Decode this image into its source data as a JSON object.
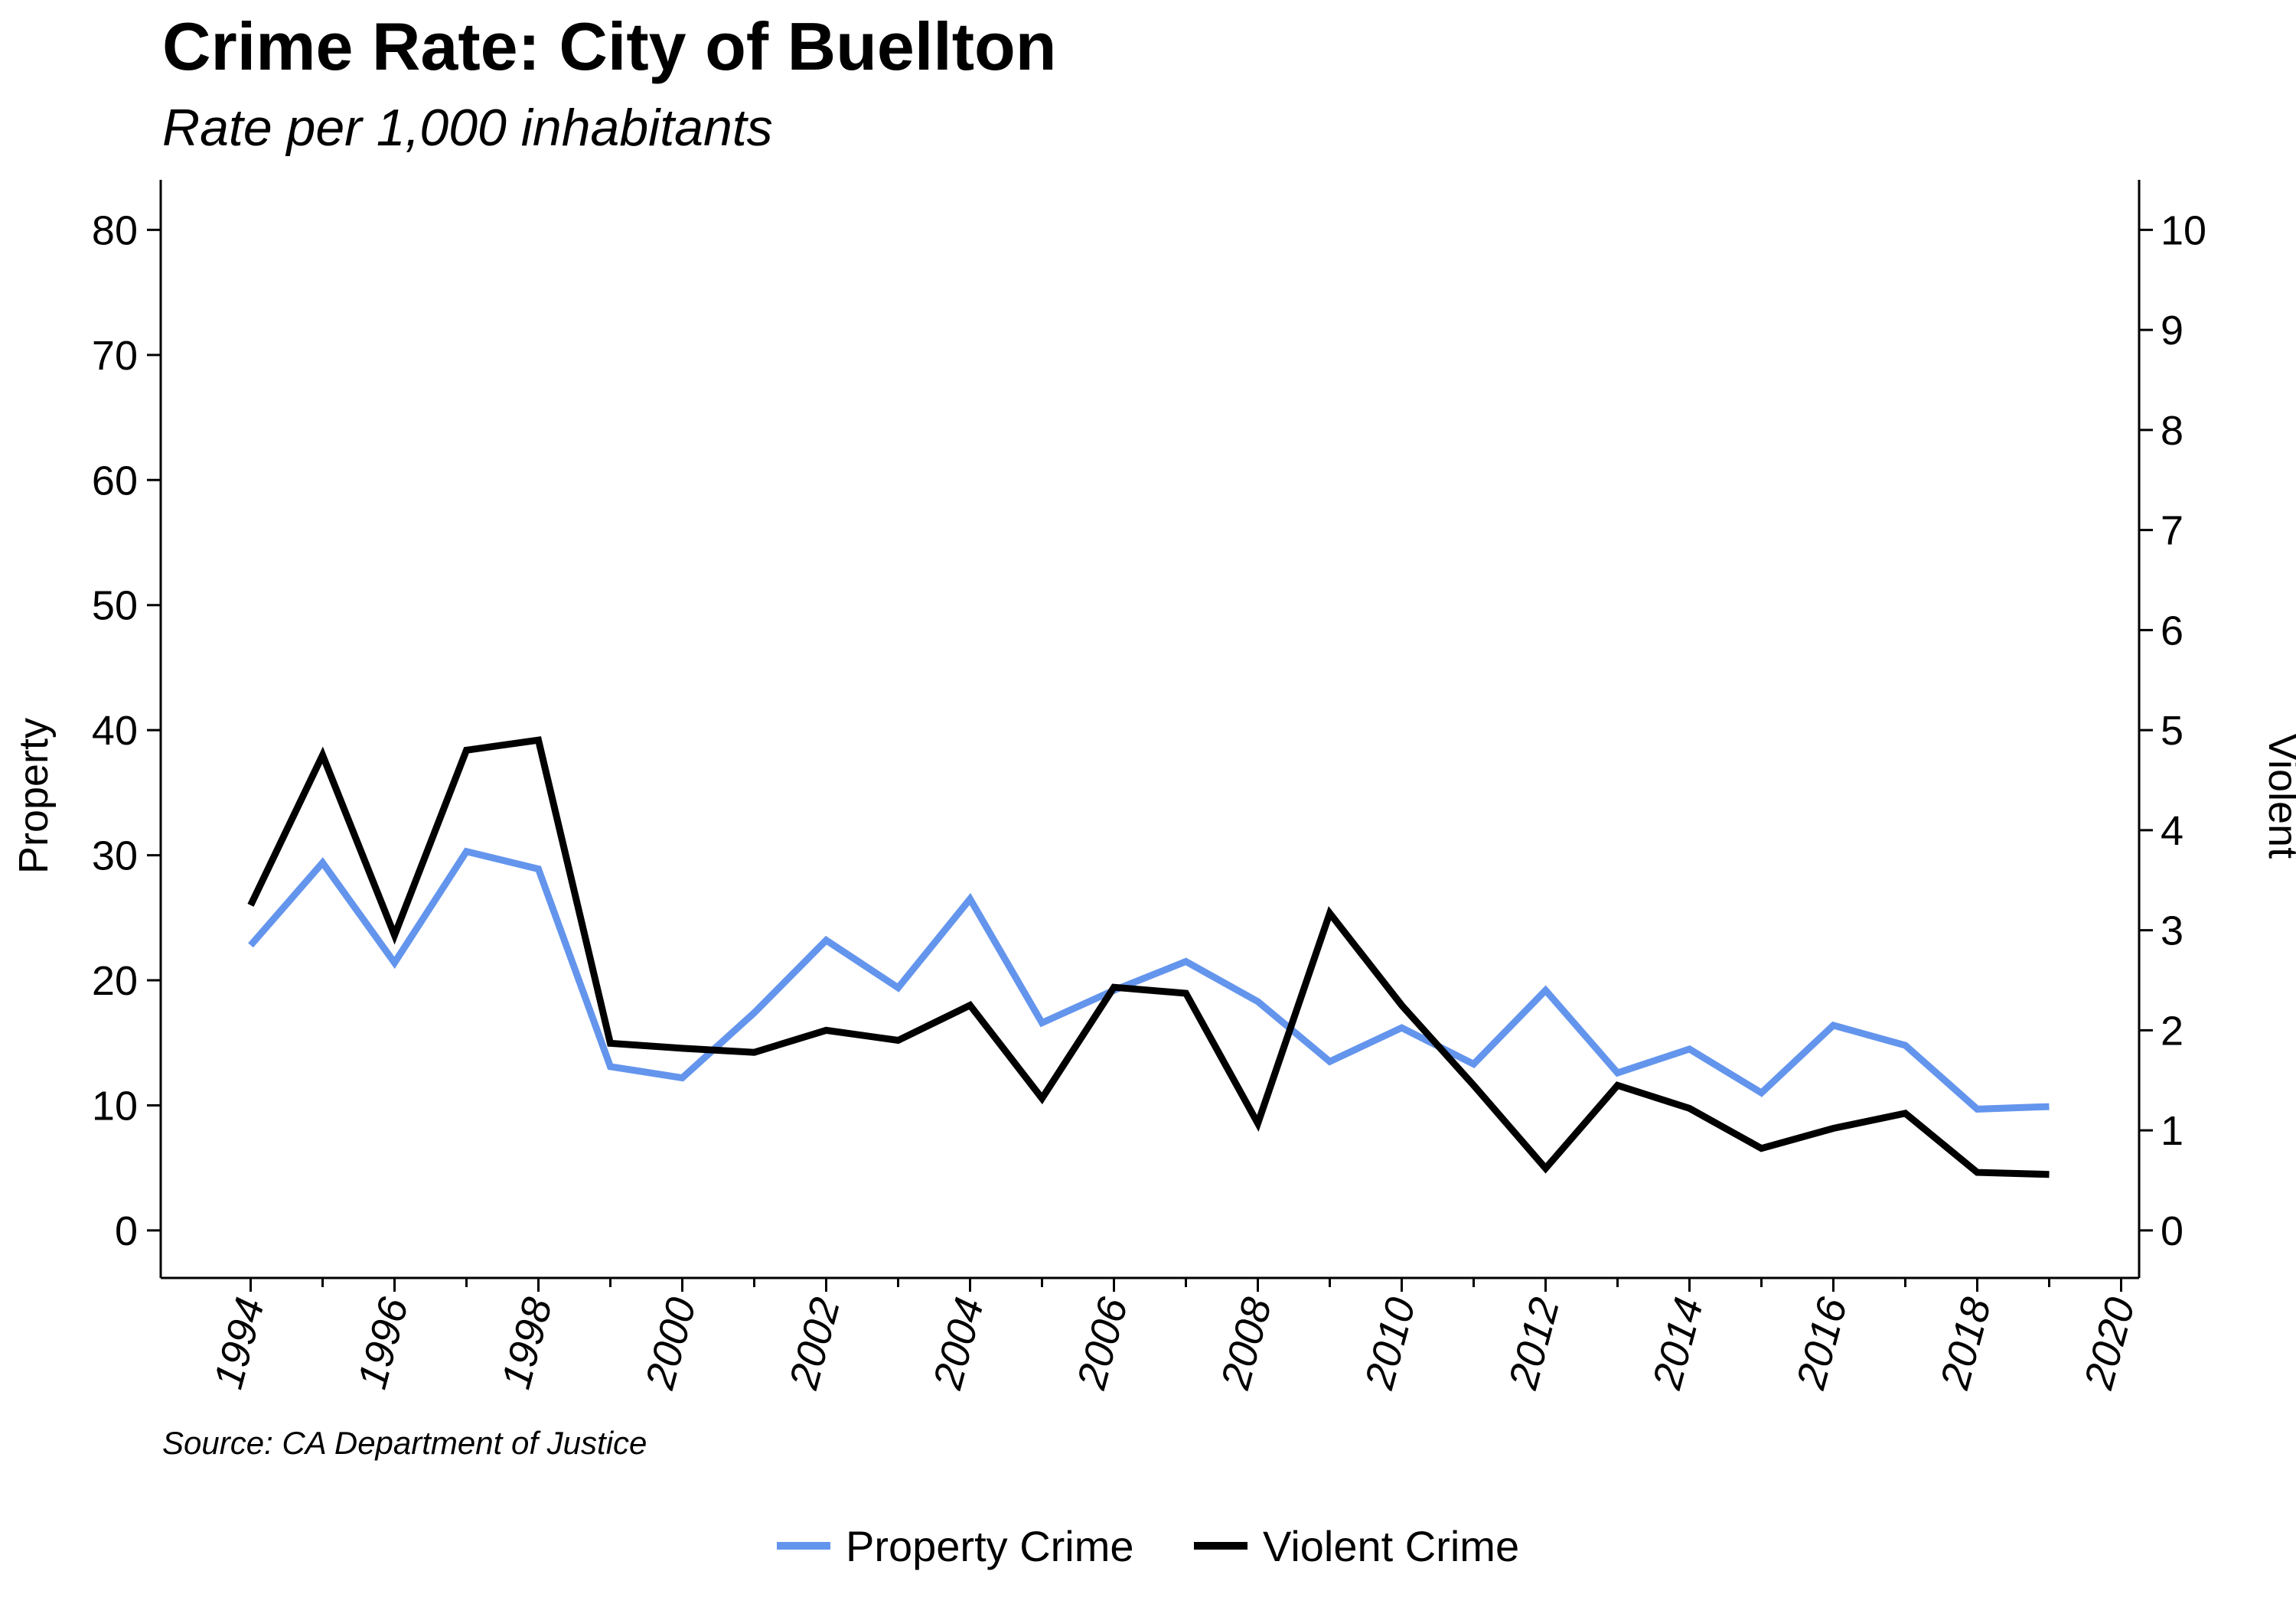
{
  "title": "Crime Rate: City of Buellton",
  "subtitle": "Rate per 1,000 inhabitants",
  "source": "Source: CA Department of Justice",
  "colors": {
    "property": "#6495ED",
    "violent": "#000000"
  },
  "chart_data": {
    "type": "line",
    "x": [
      1994,
      1995,
      1996,
      1997,
      1998,
      1999,
      2000,
      2001,
      2002,
      2003,
      2004,
      2005,
      2006,
      2007,
      2008,
      2009,
      2010,
      2011,
      2012,
      2013,
      2014,
      2015,
      2016,
      2017,
      2018,
      2019
    ],
    "series": [
      {
        "name": "Property Crime",
        "axis": "left",
        "values": [
          22.8,
          29.4,
          21.4,
          30.3,
          28.9,
          13.1,
          12.2,
          17.4,
          23.2,
          19.4,
          26.5,
          16.6,
          19.2,
          21.5,
          18.3,
          13.5,
          16.2,
          13.3,
          19.2,
          12.6,
          14.5,
          11.0,
          16.4,
          14.8,
          9.7,
          9.9
        ]
      },
      {
        "name": "Violent Crime",
        "axis": "right",
        "values": [
          3.25,
          4.75,
          2.95,
          4.8,
          4.9,
          1.87,
          1.82,
          1.78,
          2.0,
          1.9,
          2.25,
          1.32,
          2.43,
          2.37,
          1.07,
          3.17,
          2.25,
          1.45,
          0.62,
          1.45,
          1.22,
          0.82,
          1.02,
          1.17,
          0.58,
          0.56
        ]
      }
    ],
    "ylabel": "Property",
    "ylabel_right": "Violent",
    "ylim": [
      -3.8,
      84
    ],
    "ylim_right": [
      -0.475,
      10.5
    ],
    "yticks": [
      0,
      10,
      20,
      30,
      40,
      50,
      60,
      70,
      80
    ],
    "yticks_right": [
      0,
      1,
      2,
      3,
      4,
      5,
      6,
      7,
      8,
      9,
      10
    ],
    "xlim": [
      1992.75,
      2020.25
    ],
    "xticks": [
      1994,
      1996,
      1998,
      2000,
      2002,
      2004,
      2006,
      2008,
      2010,
      2012,
      2014,
      2016,
      2018,
      2020
    ],
    "xtick_minor": [
      1995,
      1997,
      1999,
      2001,
      2003,
      2005,
      2007,
      2009,
      2011,
      2013,
      2015,
      2017,
      2019
    ],
    "legend": [
      "Property Crime",
      "Violent Crime"
    ],
    "legend_position": "bottom",
    "grid": false
  }
}
